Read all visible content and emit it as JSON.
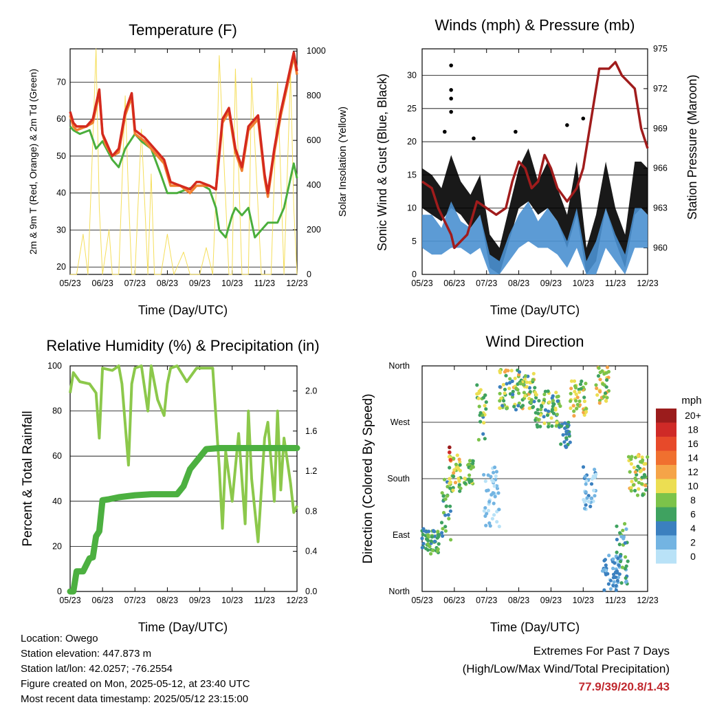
{
  "station": {
    "location": "Location: Owego",
    "elevation": "Station elevation: 447.873 m",
    "latlon": "Station lat/lon: 42.0257; -76.2554",
    "created": "Figure created on Mon, 2025-05-12, at 23:40 UTC",
    "latest": "Most recent data timestamp: 2025/05/12 23:15:00"
  },
  "extremes": {
    "title": "Extremes For Past 7 Days",
    "subtitle": "(High/Low/Max Wind/Total Precipitation)",
    "values": "77.9/39/20.8/1.43"
  },
  "colors": {
    "temp_9m": "#d42a1e",
    "temp_2m": "#f08030",
    "dewpoint": "#4aae3c",
    "solar": "#f5de5a",
    "wind": "#4a90d0",
    "gust": "#000000",
    "pressure": "#a01c1c",
    "rh": "#8cc84b",
    "precip": "#4cb040"
  },
  "speed_scale": {
    "unit": "mph",
    "labels": [
      "20+",
      "18",
      "16",
      "14",
      "12",
      "10",
      "8",
      "6",
      "4",
      "2",
      "0"
    ],
    "colors": [
      "#9b1c1c",
      "#cf2a27",
      "#e74a2a",
      "#f0702f",
      "#f5a448",
      "#ecde52",
      "#7cc34a",
      "#3fa260",
      "#3b80bf",
      "#73b4e2",
      "#b9e2f7"
    ]
  },
  "chart_data": [
    {
      "id": "temperature",
      "type": "line",
      "title": "Temperature (F)",
      "xlabel": "Time (Day/UTC)",
      "ylabel": "2m & 9m T (Red, Orange) & 2m Td (Green)",
      "y2label": "Solar Insolation (Yellow)",
      "x_ticks": [
        "05/23",
        "06/23",
        "07/23",
        "08/23",
        "09/23",
        "10/23",
        "11/23",
        "12/23"
      ],
      "ylim": [
        18,
        79
      ],
      "y_ticks": [
        20,
        30,
        40,
        50,
        60,
        70
      ],
      "y2lim": [
        0,
        1010
      ],
      "y2_ticks": [
        0,
        200,
        400,
        600,
        800,
        1000
      ],
      "x_range": [
        0,
        7
      ],
      "series": [
        {
          "key": "t9m",
          "color_key": "temp_9m",
          "x": [
            0,
            0.1,
            0.2,
            0.5,
            0.7,
            0.9,
            1.0,
            1.1,
            1.3,
            1.5,
            1.7,
            1.9,
            2.0,
            2.3,
            2.6,
            2.9,
            3.1,
            3.4,
            3.7,
            3.9,
            4.0,
            4.3,
            4.5,
            4.7,
            4.9,
            5.1,
            5.3,
            5.5,
            5.8,
            6.0,
            6.1,
            6.3,
            6.5,
            6.7,
            6.9,
            7.0
          ],
          "y": [
            62,
            59,
            58,
            58,
            60,
            68,
            56,
            54,
            50,
            52,
            62,
            67,
            57,
            55,
            52,
            49,
            43,
            42,
            41,
            43,
            43,
            42,
            41,
            60,
            63,
            52,
            47,
            58,
            61,
            45,
            40,
            52,
            62,
            70,
            78,
            73
          ]
        },
        {
          "key": "t2m",
          "color_key": "temp_2m",
          "x": [
            0,
            0.1,
            0.2,
            0.5,
            0.7,
            0.9,
            1.0,
            1.1,
            1.3,
            1.5,
            1.7,
            1.9,
            2.0,
            2.3,
            2.6,
            2.9,
            3.1,
            3.4,
            3.7,
            3.9,
            4.0,
            4.3,
            4.5,
            4.7,
            4.9,
            5.1,
            5.3,
            5.5,
            5.8,
            6.0,
            6.1,
            6.3,
            6.5,
            6.7,
            6.9,
            7.0
          ],
          "y": [
            61,
            58,
            57,
            58,
            59,
            67,
            56,
            53,
            50,
            51,
            61,
            66,
            56,
            54,
            51,
            48,
            42,
            42,
            40,
            42,
            42,
            42,
            41,
            59,
            62,
            51,
            46,
            57,
            60,
            44,
            39,
            51,
            61,
            69,
            77,
            72
          ]
        },
        {
          "key": "td",
          "color_key": "dewpoint",
          "x": [
            0,
            0.1,
            0.3,
            0.6,
            0.8,
            1.0,
            1.3,
            1.5,
            1.7,
            2.0,
            2.2,
            2.5,
            2.8,
            3.0,
            3.3,
            3.6,
            3.9,
            4.1,
            4.3,
            4.5,
            4.6,
            4.8,
            5.0,
            5.1,
            5.3,
            5.5,
            5.7,
            5.9,
            6.1,
            6.4,
            6.6,
            6.8,
            6.9,
            7.0
          ],
          "y": [
            58,
            57,
            56,
            57,
            52,
            54,
            49,
            47,
            52,
            56,
            54,
            52,
            45,
            40,
            40,
            41,
            42,
            42,
            41,
            36,
            30,
            28,
            34,
            36,
            34,
            36,
            28,
            30,
            32,
            32,
            36,
            44,
            48,
            44
          ]
        },
        {
          "key": "solar",
          "color_key": "solar",
          "y_axis": "right",
          "x": [
            0,
            0.2,
            0.4,
            0.55,
            0.7,
            0.8,
            0.9,
            1.0,
            1.2,
            1.3,
            1.5,
            1.7,
            1.8,
            1.9,
            2.0,
            2.2,
            2.4,
            2.5,
            2.6,
            2.8,
            3.0,
            3.2,
            3.5,
            3.7,
            4.0,
            4.2,
            4.4,
            4.5,
            4.6,
            4.9,
            5.0,
            5.1,
            5.3,
            5.5,
            5.6,
            5.9,
            6.0,
            6.2,
            6.4,
            6.6,
            6.8,
            6.9,
            7.0
          ],
          "y": [
            0,
            0,
            180,
            0,
            600,
            1030,
            300,
            0,
            200,
            0,
            0,
            800,
            350,
            0,
            0,
            650,
            0,
            450,
            0,
            0,
            180,
            0,
            100,
            0,
            0,
            120,
            0,
            350,
            980,
            0,
            0,
            920,
            0,
            0,
            880,
            0,
            0,
            0,
            860,
            0,
            900,
            300,
            0
          ]
        }
      ]
    },
    {
      "id": "winds",
      "type": "scatter",
      "title": "Winds (mph) & Pressure (mb)",
      "xlabel": "Time (Day/UTC)",
      "ylabel": "Sonic Wind & Gust (Blue, Black)",
      "y2label": "Station Pressure (Maroon)",
      "x_ticks": [
        "05/23",
        "06/23",
        "07/23",
        "08/23",
        "09/23",
        "10/23",
        "11/23",
        "12/23"
      ],
      "ylim": [
        0,
        34
      ],
      "y_ticks": [
        0,
        5,
        10,
        15,
        20,
        25,
        30
      ],
      "y2lim": [
        958,
        975
      ],
      "y2_ticks": [
        960,
        963,
        966,
        969,
        972,
        975
      ],
      "x_range": [
        0,
        7
      ],
      "series": [
        {
          "key": "gust_env",
          "color_key": "gust",
          "x": [
            0,
            0.3,
            0.6,
            0.9,
            1.2,
            1.5,
            1.8,
            2.1,
            2.4,
            2.7,
            3.0,
            3.3,
            3.6,
            3.9,
            4.2,
            4.5,
            4.8,
            5.1,
            5.4,
            5.7,
            6.0,
            6.3,
            6.6,
            6.8,
            7.0
          ],
          "y": [
            16,
            15,
            13,
            18,
            14,
            12,
            15,
            6,
            4,
            10,
            16,
            19,
            14,
            17,
            13,
            9,
            17,
            4,
            9,
            17,
            10,
            6,
            17,
            17,
            16
          ],
          "low": [
            10,
            9,
            8,
            10,
            9,
            7,
            9,
            1,
            0,
            5,
            10,
            11,
            9,
            10,
            8,
            4,
            9,
            0,
            2,
            10,
            5,
            1,
            9,
            10,
            9
          ]
        },
        {
          "key": "wind_env",
          "color_key": "wind",
          "x": [
            0,
            0.3,
            0.6,
            0.9,
            1.2,
            1.5,
            1.8,
            2.1,
            2.4,
            2.7,
            3.0,
            3.3,
            3.6,
            3.9,
            4.2,
            4.5,
            4.8,
            5.1,
            5.4,
            5.7,
            6.0,
            6.3,
            6.6,
            6.8,
            7.0
          ],
          "y": [
            9,
            9,
            7,
            11,
            8,
            7,
            9,
            3,
            2,
            6,
            9,
            11,
            8,
            10,
            8,
            5,
            10,
            2,
            5,
            10,
            6,
            3,
            10,
            10,
            9
          ],
          "low": [
            4,
            3,
            3,
            4,
            4,
            3,
            4,
            0,
            0,
            2,
            4,
            5,
            4,
            4,
            3,
            1,
            4,
            0,
            0,
            4,
            2,
            0,
            4,
            4,
            4
          ]
        },
        {
          "key": "gust_outliers",
          "color_key": "gust",
          "x": [
            0.9,
            0.9,
            0.9,
            0.9,
            0.7,
            1.6,
            2.9,
            4.5,
            5.0
          ],
          "y": [
            31.5,
            27.8,
            26.5,
            24.5,
            21.5,
            20.5,
            21.5,
            22.5,
            23.5
          ]
        },
        {
          "key": "pressure",
          "color_key": "pressure",
          "y_axis": "right",
          "x": [
            0,
            0.3,
            0.5,
            0.7,
            0.9,
            1.0,
            1.2,
            1.4,
            1.7,
            2.0,
            2.3,
            2.6,
            2.8,
            3.0,
            3.2,
            3.4,
            3.6,
            3.8,
            4.0,
            4.2,
            4.5,
            4.8,
            5.0,
            5.2,
            5.5,
            5.8,
            6.0,
            6.2,
            6.4,
            6.6,
            6.8,
            7.0
          ],
          "y": [
            965,
            964.5,
            963,
            962,
            961,
            960,
            960.5,
            961,
            963.5,
            963,
            962.5,
            963,
            965,
            966.5,
            966,
            964.5,
            965,
            967,
            966,
            964.5,
            963.5,
            964.5,
            966,
            969,
            973.5,
            973.5,
            974,
            973,
            972.5,
            972,
            969,
            967.5
          ]
        }
      ]
    },
    {
      "id": "humidity",
      "type": "line",
      "title": "Relative Humidity (%) & Precipitation (in)",
      "xlabel": "Time (Day/UTC)",
      "ylabel": "Percent & Total Rainfall",
      "x_ticks": [
        "05/23",
        "06/23",
        "07/23",
        "08/23",
        "09/23",
        "10/23",
        "11/23",
        "12/23"
      ],
      "ylim": [
        0,
        100
      ],
      "y_ticks": [
        0,
        20,
        40,
        60,
        80,
        100
      ],
      "y2lim": [
        0,
        2.25
      ],
      "y2_ticks": [
        "0.0",
        "0.4",
        "0.8",
        "1.2",
        "1.6",
        "2.0"
      ],
      "x_range": [
        0,
        7
      ],
      "series": [
        {
          "key": "rh",
          "color_key": "rh",
          "x": [
            0,
            0.1,
            0.3,
            0.6,
            0.8,
            0.9,
            1.0,
            1.3,
            1.5,
            1.6,
            1.8,
            1.9,
            2.0,
            2.2,
            2.4,
            2.5,
            2.7,
            2.9,
            3.0,
            3.1,
            3.3,
            3.6,
            3.9,
            4.2,
            4.4,
            4.6,
            4.7,
            4.8,
            5.0,
            5.2,
            5.4,
            5.5,
            5.6,
            5.8,
            6.0,
            6.1,
            6.3,
            6.4,
            6.5,
            6.6,
            6.8,
            6.9,
            7.0
          ],
          "y": [
            88,
            97,
            93,
            92,
            88,
            68,
            99,
            98,
            100,
            92,
            56,
            92,
            99,
            100,
            80,
            100,
            85,
            78,
            92,
            99,
            100,
            93,
            99,
            99,
            99,
            55,
            28,
            62,
            40,
            70,
            30,
            80,
            50,
            22,
            68,
            75,
            40,
            80,
            45,
            68,
            48,
            35,
            38
          ]
        },
        {
          "key": "precip",
          "color_key": "precip",
          "y_axis": "right",
          "x": [
            0,
            0.1,
            0.2,
            0.4,
            0.6,
            0.7,
            0.8,
            0.9,
            1.0,
            1.2,
            1.5,
            2.0,
            2.5,
            3.0,
            3.3,
            3.5,
            3.7,
            3.9,
            4.2,
            4.6,
            5.0,
            5.5,
            6.0,
            6.5,
            7.0
          ],
          "y": [
            0,
            0,
            0.2,
            0.2,
            0.33,
            0.34,
            0.55,
            0.6,
            0.91,
            0.92,
            0.94,
            0.96,
            0.97,
            0.97,
            0.97,
            1.05,
            1.22,
            1.3,
            1.42,
            1.43,
            1.43,
            1.43,
            1.43,
            1.43,
            1.43
          ]
        }
      ]
    },
    {
      "id": "direction",
      "type": "scatter",
      "title": "Wind Direction",
      "xlabel": "Time (Day/UTC)",
      "ylabel": "Direction (Colored By Speed)",
      "x_ticks": [
        "05/23",
        "06/23",
        "07/23",
        "08/23",
        "09/23",
        "10/23",
        "11/23",
        "12/23"
      ],
      "y_ticks": [
        "North",
        "East",
        "South",
        "West",
        "North"
      ],
      "ylim": [
        0,
        360
      ],
      "x_range": [
        0,
        7
      ],
      "clusters": [
        {
          "x": [
            0,
            0.55
          ],
          "y": [
            60,
            100
          ],
          "speed": [
            4,
            8
          ]
        },
        {
          "x": [
            0.6,
            0.9
          ],
          "y": [
            80,
            180
          ],
          "speed": [
            4,
            9
          ]
        },
        {
          "x": [
            0.8,
            1.2
          ],
          "y": [
            160,
            220
          ],
          "speed": [
            5,
            12
          ]
        },
        {
          "x": [
            1.3,
            1.6
          ],
          "y": [
            170,
            210
          ],
          "speed": [
            5,
            10
          ]
        },
        {
          "x": [
            1.7,
            2.0
          ],
          "y": [
            240,
            330
          ],
          "speed": [
            4,
            12
          ]
        },
        {
          "x": [
            1.9,
            2.4
          ],
          "y": [
            100,
            200
          ],
          "speed": [
            0,
            3
          ]
        },
        {
          "x": [
            2.4,
            3.5
          ],
          "y": [
            290,
            355
          ],
          "speed": [
            4,
            12
          ]
        },
        {
          "x": [
            3.5,
            4.3
          ],
          "y": [
            260,
            320
          ],
          "speed": [
            4,
            10
          ]
        },
        {
          "x": [
            4.3,
            4.6
          ],
          "y": [
            230,
            270
          ],
          "speed": [
            3,
            7
          ]
        },
        {
          "x": [
            4.6,
            5.1
          ],
          "y": [
            280,
            340
          ],
          "speed": [
            6,
            12
          ]
        },
        {
          "x": [
            5.0,
            5.4
          ],
          "y": [
            130,
            200
          ],
          "speed": [
            0,
            4
          ]
        },
        {
          "x": [
            5.4,
            5.8
          ],
          "y": [
            300,
            360
          ],
          "speed": [
            6,
            13
          ]
        },
        {
          "x": [
            5.6,
            6.1
          ],
          "y": [
            0,
            60
          ],
          "speed": [
            0,
            5
          ]
        },
        {
          "x": [
            6.0,
            6.4
          ],
          "y": [
            10,
            110
          ],
          "speed": [
            2,
            8
          ]
        },
        {
          "x": [
            6.4,
            7.0
          ],
          "y": [
            150,
            220
          ],
          "speed": [
            6,
            12
          ]
        }
      ],
      "extra_points": [
        {
          "x": 0.85,
          "y": 230,
          "speed": 20
        },
        {
          "x": 0.85,
          "y": 222,
          "speed": 18
        },
        {
          "x": 0.88,
          "y": 210,
          "speed": 16
        }
      ]
    }
  ]
}
